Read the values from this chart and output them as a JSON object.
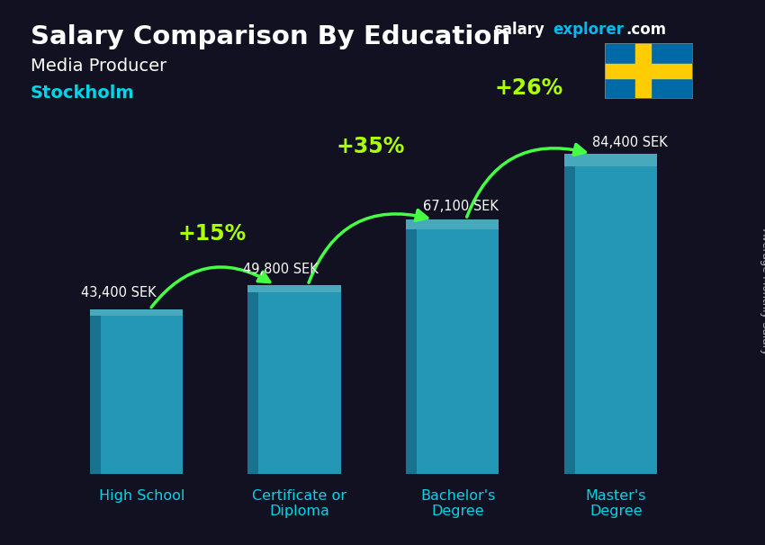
{
  "title": "Salary Comparison By Education",
  "subtitle1": "Media Producer",
  "subtitle2": "Stockholm",
  "categories": [
    "High School",
    "Certificate or\nDiploma",
    "Bachelor's\nDegree",
    "Master's\nDegree"
  ],
  "values": [
    43400,
    49800,
    67100,
    84400
  ],
  "labels": [
    "43,400 SEK",
    "49,800 SEK",
    "67,100 SEK",
    "84,400 SEK"
  ],
  "pct_labels": [
    "+15%",
    "+35%",
    "+26%"
  ],
  "bar_color_face": "#29b6d8",
  "bar_color_left": "#1a8aaa",
  "bar_color_top": "#5de0f5",
  "bar_alpha": 0.82,
  "bg_color": "#111122",
  "title_color": "#ffffff",
  "subtitle1_color": "#ffffff",
  "subtitle2_color": "#00d4e8",
  "label_color": "#ffffff",
  "pct_color": "#aaff00",
  "arrow_color": "#44ff44",
  "xtick_color": "#00d4e8",
  "site_salary_color": "#ffffff",
  "site_explorer_color": "#00bbee",
  "ylabel": "Average Monthly Salary",
  "ylim": [
    0,
    100000
  ],
  "bar_width": 0.52,
  "flag_blue": "#006AA7",
  "flag_yellow": "#FECC02"
}
